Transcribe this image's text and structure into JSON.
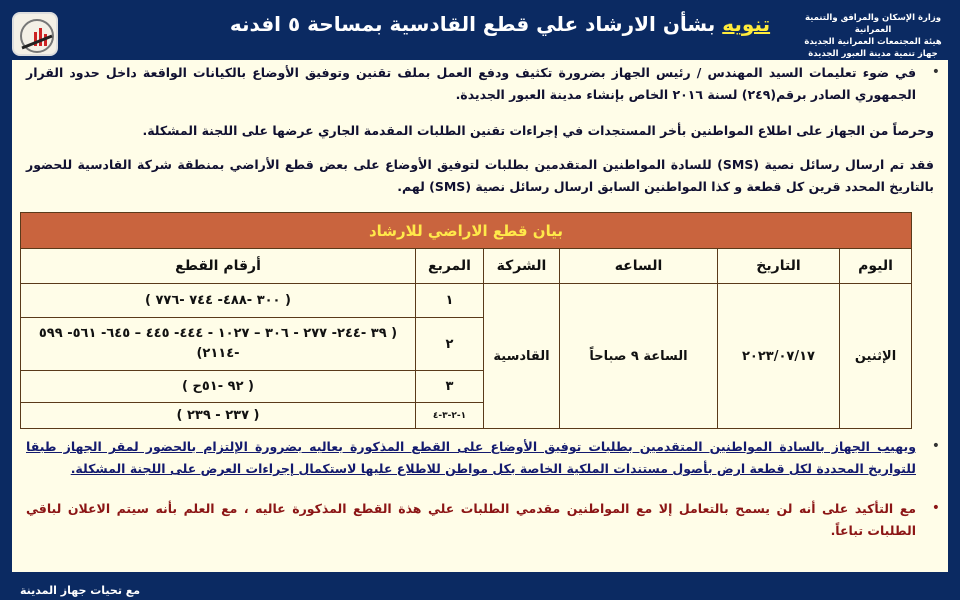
{
  "header": {
    "org_lines": [
      "وزارة الإسكان والمرافق والتنمية العمرانية",
      "هيئة المجتمعات العمرانية الجديدة",
      "جهاز تنمية مدينة العبور الجديدة"
    ],
    "title_highlight": "تنويه",
    "title_rest": " بشأن الارشاد علي قطع القادسية بمساحة ٥ افدنه"
  },
  "body": {
    "para1": "في ضوء تعليمات السيد المهندس / رئيس الجهاز بضرورة تكثيف ودفع العمل بملف تقنين وتوفيق الأوضاع بالكيانات الواقعة داخل حدود القرار الجمهوري الصادر برقم(٢٤٩) لسنة ٢٠١٦ الخاص بإنشاء مدينة العبور الجديدة.",
    "para2": "وحرصاً من الجهاز على اطلاع المواطنين بأخر المستجدات في إجراءات تقنين الطلبات المقدمة الجاري عرضها على اللجنة المشكلة.",
    "para3": "فقد تم ارسال رسائل نصية (SMS) للسادة المواطنين المتقدمين بطلبات لتوفيق الأوضاع على بعض قطع الأراضي بمنطقة شركة القادسية للحضور بالتاريخ المحدد قرين كل قطعة و كذا المواطنين السابق ارسال رسائل نصية (SMS) لهم.",
    "para4": "ويهيب الجهاز بالسادة المواطنين المتقدمين بطلبات توفيق الأوضاع على القطع المذكورة بعاليه بضرورة الإلتزام بالحضور لمقر الجهاز طبقا للتواريخ المحددة لكل قطعة ارض بأصول مستندات الملكية الخاصة بكل مواطن للاطلاع عليها لاستكمال إجراءات العرض على اللجنة المشكلة.",
    "para5": "مع التأكيد على أنه لن يسمح بالتعامل إلا مع المواطنين مقدمي الطلبات علي هذة القطع المذكورة عاليه ، مع العلم بأنه سيتم الاعلان لباقي الطلبات تباعاً."
  },
  "table": {
    "caption": "بيان قطع الاراضي للارشاد",
    "headers": {
      "day": "اليوم",
      "date": "التاريخ",
      "hour": "الساعه",
      "company": "الشركة",
      "square": "المربع",
      "pieces": "أرقام القطع"
    },
    "day": "الإثنين",
    "date": "٢٠٢٣/٠٧/١٧",
    "hour": "الساعة ٩ صباحاً",
    "company": "القادسية",
    "rows": [
      {
        "square": "١",
        "pieces": "( ٣٠٠ -٤٨٨- ٧٤٤ -٧٧٦ )"
      },
      {
        "square": "٢",
        "pieces": "( ٣٩ -٢٤٤- ٢٧٧ - ٣٠٦ – ١٠٢٧ - ٤٤٤- ٤٤٥ – ٦٤٥- ٥٦١- ٥٩٩ -٢١١٤)"
      },
      {
        "square": "٣",
        "pieces": "( ٩٢ -٥١ح )"
      },
      {
        "square": "١-٢-٣-٤",
        "pieces": "( ٢٣٧ - ٢٣٩ )"
      }
    ]
  },
  "footer": "مع تحيات جهاز المدينة",
  "colors": {
    "background": "#0b2a62",
    "panel": "#fffde8",
    "band": "#c9643e",
    "highlight": "#ffeb3b"
  }
}
